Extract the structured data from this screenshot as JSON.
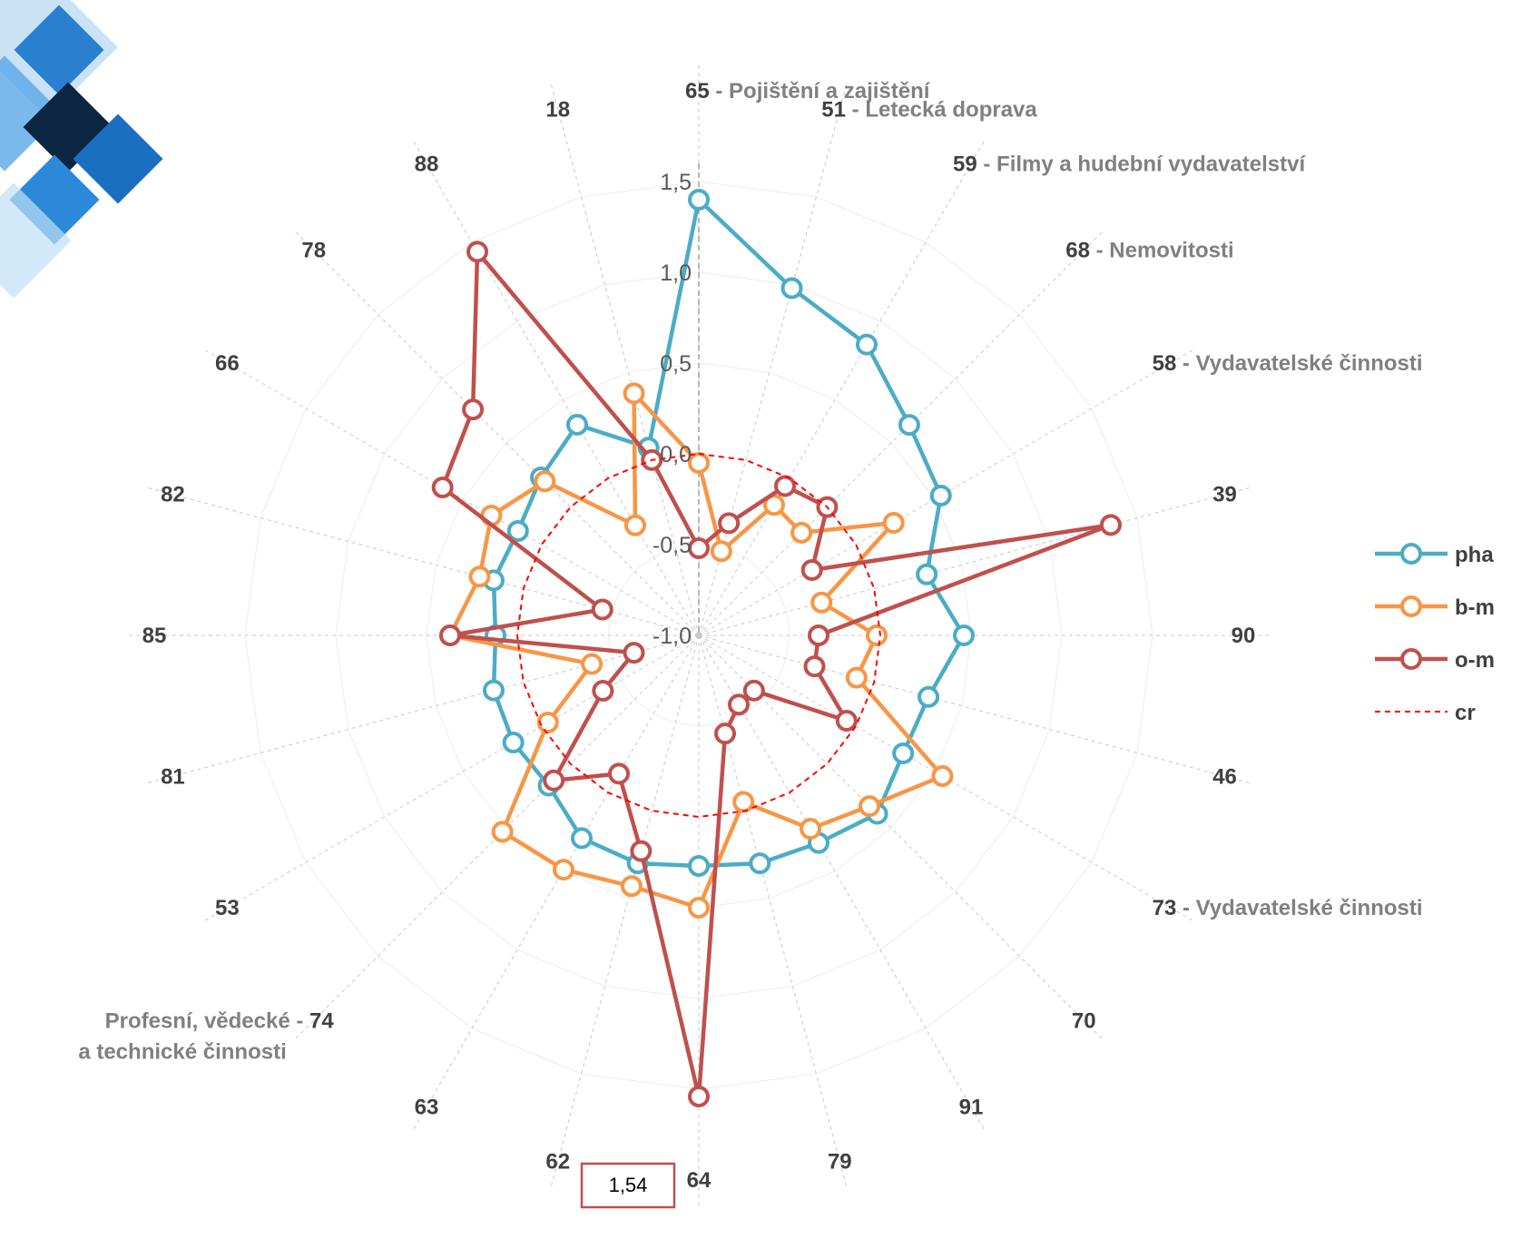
{
  "chart_data": {
    "type": "radar",
    "categories": [
      "65",
      "51",
      "59",
      "68",
      "58",
      "39",
      "90",
      "46",
      "73",
      "70",
      "91",
      "79",
      "64",
      "62",
      "63",
      "74",
      "53",
      "81",
      "85",
      "82",
      "66",
      "78",
      "88",
      "18"
    ],
    "category_names": {
      "65": "Pojištění a zajištění",
      "51": "Letecká doprava",
      "59": "Filmy a hudební vydavatelství",
      "68": "Nemovitosti",
      "58": "Vydavatelské činnosti",
      "73": "Vydavatelské činnosti",
      "74": "Profesní, vědecké - a technické činnosti"
    },
    "r_ticks": [
      "1,5",
      "1,0",
      "0,5",
      "0,0",
      "-0,5",
      "-1,0"
    ],
    "r_range": [
      -1.0,
      1.5
    ],
    "grid": true,
    "legend_position": "right",
    "series": [
      {
        "name": "pha",
        "color": "#4bacc6",
        "values": [
          1.4,
          0.98,
          0.85,
          0.64,
          0.54,
          0.3,
          0.46,
          0.31,
          0.3,
          0.39,
          0.32,
          0.3,
          0.27,
          0.3,
          0.29,
          0.17,
          0.18,
          0.17,
          0.12,
          0.17,
          0.15,
          0.23,
          0.34,
          0.07
        ]
      },
      {
        "name": "b-m",
        "color": "#f79646",
        "values": [
          -0.05,
          -0.52,
          -0.17,
          -0.2,
          0.24,
          -0.3,
          -0.02,
          -0.1,
          0.55,
          0.33,
          0.23,
          -0.05,
          0.5,
          0.43,
          0.49,
          0.53,
          -0.04,
          -0.39,
          0.37,
          0.25,
          0.32,
          0.2,
          -0.3,
          0.38
        ]
      },
      {
        "name": "o-m",
        "color": "#c0504d",
        "values": [
          -0.52,
          -0.36,
          -0.05,
          0.0,
          -0.28,
          1.35,
          -0.34,
          -0.34,
          -0.06,
          -0.57,
          -0.56,
          -0.44,
          1.54,
          0.23,
          -0.12,
          0.13,
          -0.39,
          -0.63,
          0.37,
          -0.45,
          0.63,
          0.76,
          1.44,
          0.0
        ]
      },
      {
        "name": "cr",
        "color": "#ff0000",
        "dashed": true,
        "values": [
          0,
          0,
          0,
          0,
          0,
          0,
          0,
          0,
          0,
          0,
          0,
          0,
          0,
          0,
          0,
          0,
          0,
          0,
          0,
          0,
          0,
          0,
          0,
          0
        ]
      }
    ],
    "annotations": [
      {
        "text": "1,54",
        "category": "64",
        "series": "o-m"
      }
    ]
  }
}
